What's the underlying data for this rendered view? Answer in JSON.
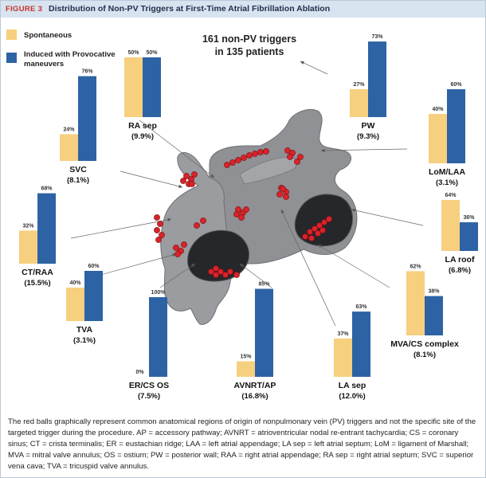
{
  "figure": {
    "label": "FIGURE 3",
    "title": "Distribution of Non-PV Triggers at First-Time Atrial Fibrillation Ablation"
  },
  "legend": {
    "spontaneous": "Spontaneous",
    "induced_line1": "Induced with Provocative",
    "induced_line2": "maneuvers"
  },
  "colors": {
    "spontaneous": "#f6cf7f",
    "induced": "#2d63a4"
  },
  "center_note": {
    "line1": "161 non-PV triggers",
    "line2": "in 135 patients"
  },
  "chart_data": {
    "type": "bar",
    "title": "Distribution of Non-PV Triggers at First-Time Atrial Fibrillation Ablation",
    "series": [
      {
        "name": "Spontaneous",
        "key": "spontaneous"
      },
      {
        "name": "Induced with Provocative maneuvers",
        "key": "induced"
      }
    ],
    "charts": [
      {
        "id": "ra-sep",
        "region": "RA sep",
        "share": "(9.9%)",
        "spontaneous": 50,
        "induced": 50
      },
      {
        "id": "pw",
        "region": "PW",
        "share": "(9.3%)",
        "spontaneous": 27,
        "induced": 73
      },
      {
        "id": "lom-laa",
        "region": "LoM/LAA",
        "share": "(3.1%)",
        "spontaneous": 40,
        "induced": 60
      },
      {
        "id": "svc",
        "region": "SVC",
        "share": "(8.1%)",
        "spontaneous": 24,
        "induced": 76
      },
      {
        "id": "la-roof",
        "region": "LA roof",
        "share": "(6.8%)",
        "spontaneous": 64,
        "induced": 36
      },
      {
        "id": "ct-raa",
        "region": "CT/RAA",
        "share": "(15.5%)",
        "spontaneous": 32,
        "induced": 68
      },
      {
        "id": "tva",
        "region": "TVA",
        "share": "(3.1%)",
        "spontaneous": 40,
        "induced": 60
      },
      {
        "id": "mva-cs",
        "region": "MVA/CS complex",
        "share": "(8.1%)",
        "spontaneous": 62,
        "induced": 38
      },
      {
        "id": "er-cs",
        "region": "ER/CS OS",
        "share": "(7.5%)",
        "spontaneous": 0,
        "induced": 100
      },
      {
        "id": "avnrt",
        "region": "AVNRT/AP",
        "share": "(16.8%)",
        "spontaneous": 15,
        "induced": 85
      },
      {
        "id": "la-sep",
        "region": "LA sep",
        "share": "(12.0%)",
        "spontaneous": 37,
        "induced": 63
      }
    ]
  },
  "caption": "The red balls graphically represent common anatomical regions of origin of nonpulmonary vein (PV) triggers and not the specific site of the targeted trigger during the procedure. AP = accessory pathway; AVNRT = atrioventricular nodal re-entrant tachycardia; CS = coronary sinus; CT = crista terminalis; ER = eustachian ridge; LAA = left atrial appendage; LA sep = left atrial septum; LoM = ligament of Marshall; MVA = mitral valve annulus; OS = ostium; PW = posterior wall; RAA = right atrial appendage; RA sep = right atrial septum; SVC = superior vena cava; TVA = tricuspid valve annulus."
}
